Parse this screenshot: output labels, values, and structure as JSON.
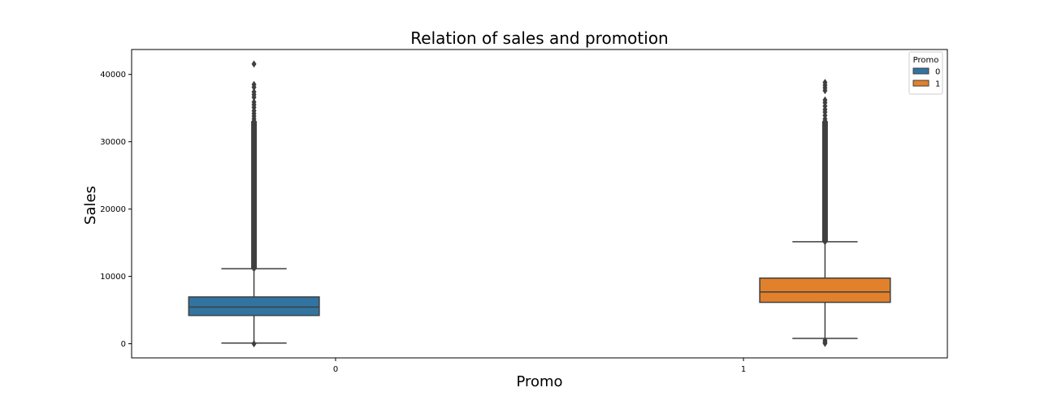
{
  "chart_data": {
    "type": "box",
    "title": "Relation of sales and promotion",
    "xlabel": "Promo",
    "ylabel": "Sales",
    "categories": [
      "0",
      "1"
    ],
    "ylim": [
      -2100,
      43700
    ],
    "yticks": [
      0,
      10000,
      20000,
      30000,
      40000
    ],
    "grid": false,
    "legend": {
      "title": "Promo",
      "placement": "top-right",
      "entries": [
        "0",
        "1"
      ]
    },
    "series": [
      {
        "name": "0",
        "category": "0",
        "color": "#3274a1",
        "q1": 4200,
        "median": 5450,
        "q3": 6950,
        "whisker_low": 100,
        "whisker_high": 11150,
        "outliers": [
          0,
          41550,
          38500,
          38100,
          37400,
          37000,
          36600,
          35900,
          35500,
          35100,
          34600,
          34200,
          33800,
          33400,
          33000
        ],
        "outlier_range": [
          11200,
          33000
        ]
      },
      {
        "name": "1",
        "category": "1",
        "color": "#e1812c",
        "q1": 6150,
        "median": 7700,
        "q3": 9750,
        "whisker_low": 800,
        "whisker_high": 15150,
        "outliers": [
          500,
          250,
          50,
          38800,
          38400,
          38000,
          37600,
          36200,
          35800,
          35300,
          34800,
          34400,
          33900,
          33400,
          33000
        ],
        "outlier_range": [
          15200,
          33000
        ]
      }
    ]
  }
}
